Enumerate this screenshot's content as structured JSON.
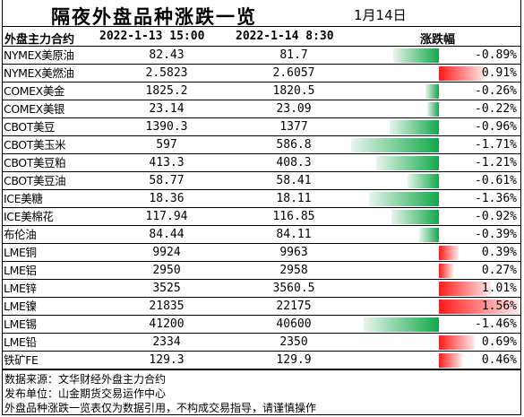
{
  "title": "隔夜外盘品种涨跌一览",
  "date": "1月14日",
  "header": {
    "name": "外盘主力合约",
    "col1": "2022-1-13 15:00",
    "col2": "2022-1-14 8:30",
    "change": "涨跌幅"
  },
  "rows": [
    {
      "name": "NYMEX美原油",
      "v1": "82.43",
      "v2": "81.7",
      "pct": "-0.89%",
      "change": -0.89
    },
    {
      "name": "NYMEX美燃油",
      "v1": "2.5823",
      "v2": "2.6057",
      "pct": "0.91%",
      "change": 0.91
    },
    {
      "name": "COMEX美金",
      "v1": "1825.2",
      "v2": "1820.5",
      "pct": "-0.26%",
      "change": -0.26
    },
    {
      "name": "COMEX美银",
      "v1": "23.14",
      "v2": "23.09",
      "pct": "-0.22%",
      "change": -0.22
    },
    {
      "name": "CBOT美豆",
      "v1": "1390.3",
      "v2": "1377",
      "pct": "-0.96%",
      "change": -0.96
    },
    {
      "name": "CBOT美玉米",
      "v1": "597",
      "v2": "586.8",
      "pct": "-1.71%",
      "change": -1.71
    },
    {
      "name": "CBOT美豆粕",
      "v1": "413.3",
      "v2": "408.3",
      "pct": "-1.21%",
      "change": -1.21
    },
    {
      "name": "CBOT美豆油",
      "v1": "58.77",
      "v2": "58.41",
      "pct": "-0.61%",
      "change": -0.61
    },
    {
      "name": "ICE美糖",
      "v1": "18.36",
      "v2": "18.11",
      "pct": "-1.36%",
      "change": -1.36
    },
    {
      "name": "ICE美棉花",
      "v1": "117.94",
      "v2": "116.85",
      "pct": "-0.92%",
      "change": -0.92
    },
    {
      "name": "布伦油",
      "v1": "84.44",
      "v2": "84.11",
      "pct": "-0.39%",
      "change": -0.39
    },
    {
      "name": "LME铜",
      "v1": "9924",
      "v2": "9963",
      "pct": "0.39%",
      "change": 0.39
    },
    {
      "name": "LME铝",
      "v1": "2950",
      "v2": "2958",
      "pct": "0.27%",
      "change": 0.27
    },
    {
      "name": "LME锌",
      "v1": "3525",
      "v2": "3560.5",
      "pct": "1.01%",
      "change": 1.01
    },
    {
      "name": "LME镍",
      "v1": "21835",
      "v2": "22175",
      "pct": "1.56%",
      "change": 1.56
    },
    {
      "name": "LME锡",
      "v1": "41200",
      "v2": "40600",
      "pct": "-1.46%",
      "change": -1.46
    },
    {
      "name": "LME铅",
      "v1": "2334",
      "v2": "2350",
      "pct": "0.69%",
      "change": 0.69
    },
    {
      "name": "铁矿FE",
      "v1": "129.3",
      "v2": "129.9",
      "pct": "0.46%",
      "change": 0.46
    }
  ],
  "footer": [
    "数据来源：文华财经外盘主力合约",
    "发布单位：山金期货交易运作中心",
    "外盘品种涨跌一览表仅为数据引用，不构成交易指导，请谨慎操作"
  ],
  "colors": {
    "up": "#ff1a1a",
    "down": "#12a84a"
  }
}
